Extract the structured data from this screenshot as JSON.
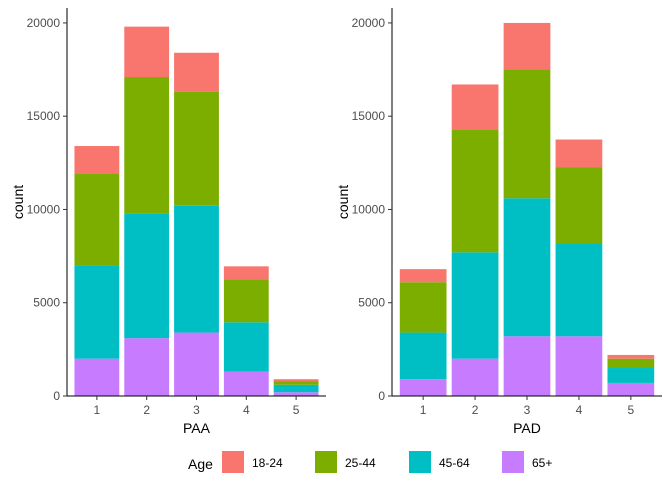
{
  "chart_data": [
    {
      "type": "bar",
      "stacked": true,
      "xlabel": "PAA",
      "ylabel": "count",
      "categories": [
        "1",
        "2",
        "3",
        "4",
        "5"
      ],
      "ylim": [
        0,
        20800
      ],
      "yticks": [
        "0",
        "5000",
        "10000",
        "15000",
        "20000"
      ],
      "series": [
        {
          "name": "65+",
          "color": "#C77CFF",
          "values": [
            2000,
            3100,
            3400,
            1300,
            200
          ]
        },
        {
          "name": "45-64",
          "color": "#00BFC4",
          "values": [
            5000,
            6700,
            6800,
            2650,
            400
          ]
        },
        {
          "name": "25-44",
          "color": "#7CAE00",
          "values": [
            4900,
            7300,
            6100,
            2300,
            200
          ]
        },
        {
          "name": "18-24",
          "color": "#F8766D",
          "values": [
            1500,
            2700,
            2100,
            700,
            100
          ]
        }
      ]
    },
    {
      "type": "bar",
      "stacked": true,
      "xlabel": "PAD",
      "ylabel": "count",
      "categories": [
        "1",
        "2",
        "3",
        "4",
        "5"
      ],
      "ylim": [
        0,
        20800
      ],
      "yticks": [
        "0",
        "5000",
        "10000",
        "15000",
        "20000"
      ],
      "series": [
        {
          "name": "65+",
          "color": "#C77CFF",
          "values": [
            900,
            2000,
            3200,
            3200,
            700
          ]
        },
        {
          "name": "45-64",
          "color": "#00BFC4",
          "values": [
            2500,
            5700,
            7400,
            5000,
            800
          ]
        },
        {
          "name": "25-44",
          "color": "#7CAE00",
          "values": [
            2700,
            6600,
            6900,
            4050,
            500
          ]
        },
        {
          "name": "18-24",
          "color": "#F8766D",
          "values": [
            700,
            2400,
            2500,
            1500,
            200
          ]
        }
      ]
    }
  ],
  "legend": {
    "title": "Age",
    "position": "bottom",
    "items": [
      {
        "label": "18-24",
        "color": "#F8766D"
      },
      {
        "label": "25-44",
        "color": "#7CAE00"
      },
      {
        "label": "45-64",
        "color": "#00BFC4"
      },
      {
        "label": "65+",
        "color": "#C77CFF"
      }
    ]
  }
}
